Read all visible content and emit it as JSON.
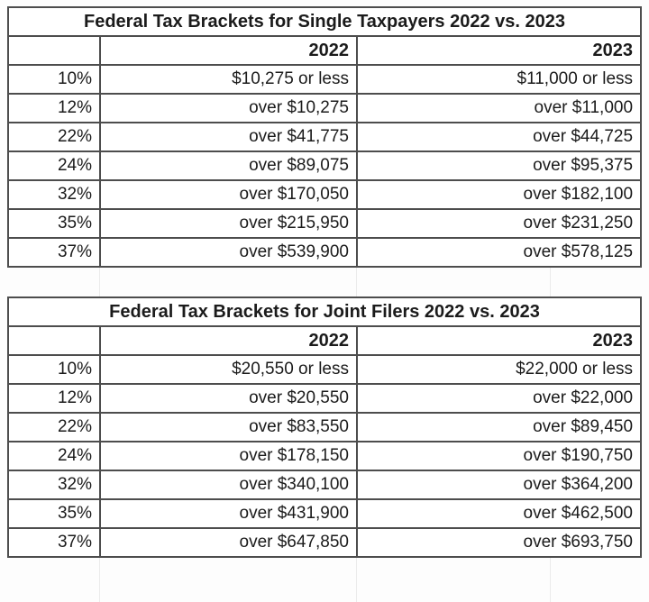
{
  "page": {
    "background": "#fdfdfd",
    "gridline_color": "#ebebeb",
    "border_color": "#4d4d4d",
    "text_color": "#1b1b1b"
  },
  "chart_data": [
    {
      "type": "table",
      "title": "Federal Tax Brackets for Single Taxpayers 2022 vs. 2023",
      "columns": [
        "",
        "2022",
        "2023"
      ],
      "rows": [
        [
          "10%",
          "$10,275 or less",
          "$11,000 or less"
        ],
        [
          "12%",
          "over $10,275",
          "over $11,000"
        ],
        [
          "22%",
          "over $41,775",
          "over $44,725"
        ],
        [
          "24%",
          "over $89,075",
          "over $95,375"
        ],
        [
          "32%",
          "over $170,050",
          "over $182,100"
        ],
        [
          "35%",
          "over $215,950",
          "over $231,250"
        ],
        [
          "37%",
          "over $539,900",
          "over $578,125"
        ]
      ],
      "layout_hints": {
        "title_align": "center",
        "cell_align": "right",
        "header_style": "bold"
      }
    },
    {
      "type": "table",
      "title": "Federal Tax Brackets for Joint Filers 2022 vs. 2023",
      "columns": [
        "",
        "2022",
        "2023"
      ],
      "rows": [
        [
          "10%",
          "$20,550 or less",
          "$22,000 or less"
        ],
        [
          "12%",
          "over $20,550",
          "over $22,000"
        ],
        [
          "22%",
          "over $83,550",
          "over $89,450"
        ],
        [
          "24%",
          "over $178,150",
          "over $190,750"
        ],
        [
          "32%",
          "over $340,100",
          "over $364,200"
        ],
        [
          "35%",
          "over $431,900",
          "over $462,500"
        ],
        [
          "37%",
          "over $647,850",
          "over $693,750"
        ]
      ],
      "layout_hints": {
        "title_align": "center",
        "cell_align": "right",
        "header_style": "bold"
      }
    }
  ]
}
